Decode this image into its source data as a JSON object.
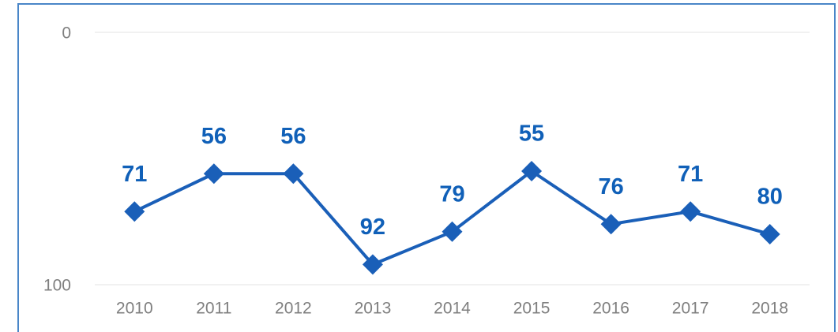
{
  "chart_data": {
    "type": "line",
    "categories": [
      "2010",
      "2011",
      "2012",
      "2013",
      "2014",
      "2015",
      "2016",
      "2017",
      "2018"
    ],
    "values": [
      71,
      56,
      56,
      92,
      79,
      55,
      76,
      71,
      80
    ],
    "color": "#1a5fb8",
    "ylim": [
      0,
      100
    ],
    "yticks": [
      0,
      100
    ],
    "y_inverted": true,
    "grid": true
  }
}
